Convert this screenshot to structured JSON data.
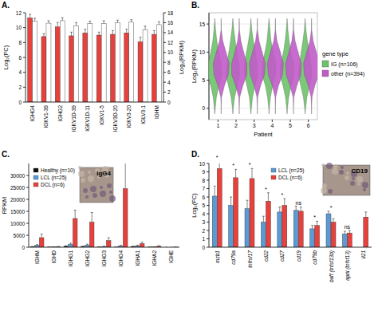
{
  "chart_data": [
    {
      "panel": "A.",
      "type": "bar",
      "y_label": "Log₂(FC)",
      "y2_label": "Log₂(RPKM)",
      "categories": [
        "IGHG4",
        "IGKV1-39",
        "IGHG2",
        "IGKV1D-39",
        "IGKV1D-11",
        "IGKV1-5",
        "IGKV3D-20",
        "IGKV3-20",
        "IGLV3-1",
        "IGHM"
      ],
      "series": [
        {
          "color": "#e8413c",
          "values": [
            11.3,
            8.8,
            10.1,
            8.9,
            9.3,
            9.0,
            9.1,
            9.3,
            8.1,
            9.1
          ],
          "errors": [
            0.5,
            0.4,
            0.6,
            0.5,
            0.5,
            0.4,
            0.5,
            0.5,
            0.6,
            0.5
          ]
        },
        {
          "color": "#ffffff",
          "axis": "y2",
          "values": [
            16.3,
            15.9,
            16.4,
            15.4,
            15.8,
            15.8,
            16.0,
            16.1,
            14.6,
            15.6
          ],
          "errors": [
            0.6,
            0.5,
            0.6,
            0.6,
            0.5,
            0.6,
            0.5,
            0.5,
            0.7,
            0.6
          ]
        }
      ],
      "ylim": [
        0,
        12
      ],
      "yticks": [
        0,
        2,
        4,
        6,
        8,
        10,
        12
      ],
      "y2lim": [
        0,
        18
      ],
      "y2ticks": [
        0,
        2,
        4,
        6,
        8,
        10,
        12,
        14,
        16,
        18
      ]
    },
    {
      "panel": "B.",
      "type": "violin",
      "x_label": "Patient",
      "y_label": "Log₂(RPKM)",
      "categories": [
        "1",
        "2",
        "3",
        "4",
        "5",
        "6"
      ],
      "ylim": [
        -2,
        17
      ],
      "yticks": [
        0,
        5,
        10,
        15
      ],
      "grid": true,
      "legend": "right",
      "legend_title": "gene type",
      "density_y": [
        -1,
        0,
        2,
        4,
        6,
        8,
        10,
        12,
        14,
        16
      ],
      "series": [
        {
          "name": "IG (n=106)",
          "color": "#6cc36a",
          "density": [
            [
              0,
              0.06,
              0.2,
              0.5,
              0.9,
              0.8,
              0.5,
              0.25,
              0.1,
              0
            ],
            [
              0,
              0.05,
              0.22,
              0.55,
              0.85,
              0.75,
              0.5,
              0.3,
              0.12,
              0
            ],
            [
              0,
              0.06,
              0.2,
              0.5,
              0.8,
              0.8,
              0.55,
              0.3,
              0.1,
              0
            ],
            [
              0,
              0.04,
              0.18,
              0.45,
              0.85,
              0.85,
              0.5,
              0.25,
              0.12,
              0
            ],
            [
              0,
              0.05,
              0.2,
              0.5,
              0.9,
              0.8,
              0.45,
              0.25,
              0.1,
              0
            ],
            [
              0,
              0.06,
              0.22,
              0.55,
              0.85,
              0.7,
              0.5,
              0.28,
              0.1,
              0
            ]
          ]
        },
        {
          "name": "other (n=394)",
          "color": "#c25bc9",
          "density": [
            [
              0,
              0,
              0.05,
              0.4,
              0.9,
              1,
              0.6,
              0.2,
              0.02,
              0
            ],
            [
              0,
              0,
              0.06,
              0.45,
              0.95,
              0.95,
              0.55,
              0.2,
              0.03,
              0
            ],
            [
              0,
              0,
              0.05,
              0.4,
              0.9,
              1,
              0.6,
              0.22,
              0.02,
              0
            ],
            [
              0,
              0,
              0.04,
              0.38,
              0.9,
              1,
              0.62,
              0.2,
              0.02,
              0
            ],
            [
              0,
              0,
              0.05,
              0.42,
              0.92,
              0.98,
              0.58,
              0.2,
              0.03,
              0
            ],
            [
              0,
              0,
              0.06,
              0.4,
              0.9,
              1,
              0.6,
              0.2,
              0.02,
              0
            ]
          ]
        }
      ]
    },
    {
      "panel": "C.",
      "type": "bar",
      "y_label": "RPKM",
      "inset_label": "IgG4",
      "categories": [
        "IGHM",
        "IGHD",
        "IGHG1",
        "IGHG2",
        "IGHG3",
        "IGHG4",
        "IGHA1",
        "IGHA2",
        "IGHE"
      ],
      "series": [
        {
          "name": "Healthy (n=10)",
          "color": "#111111",
          "values": [
            200,
            50,
            400,
            300,
            100,
            50,
            300,
            50,
            0
          ],
          "errors": [
            100,
            20,
            200,
            150,
            50,
            30,
            150,
            30,
            0
          ]
        },
        {
          "name": "LCL (n=25)",
          "color": "#5a9bd5",
          "values": [
            800,
            100,
            1200,
            900,
            300,
            500,
            600,
            100,
            0
          ],
          "errors": [
            300,
            50,
            500,
            400,
            150,
            300,
            250,
            50,
            0
          ]
        },
        {
          "name": "DCL (n=6)",
          "color": "#e8413c",
          "values": [
            4000,
            200,
            12000,
            10500,
            2800,
            24500,
            1500,
            400,
            50
          ],
          "errors": [
            1500,
            100,
            3500,
            4000,
            1200,
            11000,
            600,
            200,
            20
          ]
        }
      ],
      "ylim": [
        0,
        35000
      ],
      "yticks": [
        0,
        5000,
        10000,
        15000,
        20000,
        25000,
        30000
      ],
      "legend": "top-left"
    },
    {
      "panel": "D.",
      "type": "bar",
      "y_label": "Log₂(FC)",
      "inset_label": "CD19",
      "categories": [
        "mzb1",
        "cd79a",
        "tnfrsf17",
        "cd22",
        "cd27",
        "cd19",
        "cd79b",
        "baff (tnfsf13b)",
        "april (tnfsf13)",
        "il21"
      ],
      "series": [
        {
          "name": "LCL (n=25)",
          "color": "#5a9bd5",
          "values": [
            6.1,
            5.0,
            4.6,
            3.0,
            4.2,
            4.4,
            2.2,
            4.0,
            1.6,
            null
          ],
          "errors": [
            1.2,
            1.0,
            1.0,
            0.7,
            0.6,
            0.5,
            0.4,
            0.3,
            0.3,
            null
          ]
        },
        {
          "name": "DCL (n=6)",
          "color": "#e8413c",
          "values": [
            9.4,
            8.3,
            8.2,
            5.5,
            5.0,
            4.3,
            2.6,
            3.0,
            1.7,
            3.6
          ],
          "errors": [
            0.9,
            1.0,
            1.2,
            1.0,
            0.8,
            0.5,
            0.5,
            0.4,
            0.3,
            0.6
          ]
        }
      ],
      "significance": [
        "*",
        "*",
        "*",
        "*",
        "*",
        "ns",
        "*",
        "*",
        "ns",
        null
      ],
      "ylim": [
        0,
        10
      ],
      "yticks": [
        0,
        1,
        2,
        3,
        4,
        5,
        6,
        7,
        8,
        9,
        10
      ],
      "legend": "top-center"
    }
  ]
}
